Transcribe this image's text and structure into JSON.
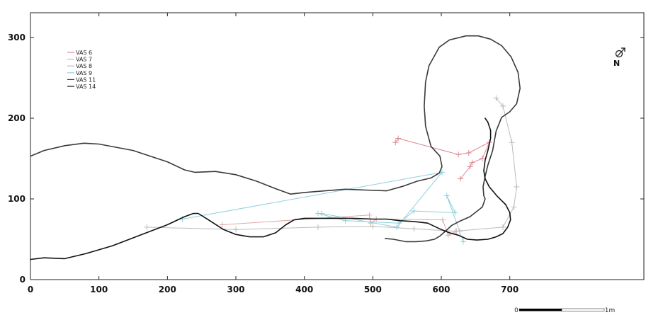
{
  "chart_data": {
    "type": "line",
    "title": "",
    "xlabel": "",
    "ylabel": "",
    "xlim": [
      0,
      750
    ],
    "ylim": [
      0,
      325
    ],
    "x_ticks": [
      0,
      100,
      200,
      300,
      400,
      500,
      600,
      700
    ],
    "y_ticks": [
      0,
      100,
      200,
      300
    ],
    "legend_position": "top-left",
    "series": [
      {
        "name": "VAS 6",
        "color": "#d98a94",
        "points": [
          [
            533,
            170
          ],
          [
            537,
            175
          ],
          [
            625,
            155
          ],
          [
            640,
            157
          ],
          [
            670,
            170
          ],
          [
            660,
            150
          ],
          [
            645,
            145
          ],
          [
            642,
            140
          ],
          [
            628,
            125
          ]
        ]
      },
      {
        "name": "VAS 7",
        "color": "#e3a9a9",
        "points": [
          [
            280,
            68
          ],
          [
            495,
            80
          ],
          [
            497,
            70
          ],
          [
            505,
            75
          ],
          [
            602,
            74
          ],
          [
            610,
            55
          ],
          [
            622,
            60
          ],
          [
            627,
            60
          ]
        ]
      },
      {
        "name": "VAS 8",
        "color": "#bbbbbb",
        "points": [
          [
            170,
            65
          ],
          [
            300,
            62
          ],
          [
            420,
            65
          ],
          [
            500,
            66
          ],
          [
            560,
            63
          ],
          [
            620,
            60
          ],
          [
            690,
            65
          ],
          [
            706,
            90
          ],
          [
            710,
            115
          ],
          [
            703,
            170
          ],
          [
            690,
            215
          ],
          [
            680,
            225
          ]
        ]
      },
      {
        "name": "VAS 9",
        "color": "#8fd0dd",
        "points": [
          [
            222,
            75
          ],
          [
            601,
            133
          ],
          [
            535,
            65
          ],
          [
            425,
            82
          ],
          [
            420,
            82
          ],
          [
            460,
            73
          ],
          [
            538,
            70
          ],
          [
            560,
            85
          ],
          [
            620,
            83
          ],
          [
            608,
            104
          ],
          [
            632,
            47
          ]
        ]
      },
      {
        "name": "VAS 11",
        "color": "#3a3a3a",
        "points": [
          [
            0,
            153
          ],
          [
            20,
            160
          ],
          [
            50,
            166
          ],
          [
            78,
            169
          ],
          [
            100,
            168
          ],
          [
            150,
            160
          ],
          [
            200,
            146
          ],
          [
            225,
            136
          ],
          [
            240,
            133
          ],
          [
            270,
            134
          ],
          [
            300,
            130
          ],
          [
            330,
            122
          ],
          [
            360,
            112
          ],
          [
            380,
            106
          ],
          [
            400,
            108
          ],
          [
            430,
            110
          ],
          [
            460,
            112
          ],
          [
            490,
            111
          ],
          [
            520,
            110
          ],
          [
            545,
            116
          ],
          [
            565,
            122
          ],
          [
            585,
            126
          ],
          [
            597,
            132
          ],
          [
            601,
            140
          ],
          [
            598,
            153
          ],
          [
            585,
            165
          ],
          [
            577,
            190
          ],
          [
            575,
            215
          ],
          [
            577,
            245
          ],
          [
            582,
            265
          ],
          [
            597,
            288
          ],
          [
            612,
            297
          ],
          [
            636,
            302
          ],
          [
            654,
            302
          ],
          [
            672,
            298
          ],
          [
            688,
            290
          ],
          [
            702,
            276
          ],
          [
            712,
            257
          ],
          [
            715,
            237
          ],
          [
            710,
            218
          ],
          [
            700,
            208
          ],
          [
            688,
            201
          ],
          [
            680,
            184
          ],
          [
            675,
            160
          ],
          [
            668,
            142
          ],
          [
            664,
            128
          ],
          [
            661,
            115
          ],
          [
            662,
            104
          ],
          [
            664,
            100
          ],
          [
            660,
            90
          ],
          [
            642,
            78
          ],
          [
            626,
            72
          ],
          [
            615,
            67
          ],
          [
            606,
            60
          ],
          [
            598,
            54
          ],
          [
            590,
            50
          ],
          [
            578,
            48
          ],
          [
            563,
            47
          ],
          [
            548,
            47
          ],
          [
            530,
            50
          ],
          [
            518,
            51
          ]
        ]
      },
      {
        "name": "VAS 14",
        "color": "#111111",
        "points": [
          [
            0,
            25
          ],
          [
            20,
            27
          ],
          [
            50,
            26
          ],
          [
            80,
            32
          ],
          [
            120,
            42
          ],
          [
            160,
            55
          ],
          [
            200,
            68
          ],
          [
            225,
            78
          ],
          [
            238,
            82
          ],
          [
            245,
            82
          ],
          [
            260,
            74
          ],
          [
            282,
            62
          ],
          [
            300,
            56
          ],
          [
            320,
            53
          ],
          [
            340,
            53
          ],
          [
            358,
            58
          ],
          [
            373,
            68
          ],
          [
            385,
            74
          ],
          [
            400,
            76
          ],
          [
            430,
            76
          ],
          [
            470,
            76
          ],
          [
            500,
            75
          ],
          [
            520,
            75
          ],
          [
            540,
            73
          ],
          [
            560,
            72
          ],
          [
            580,
            70
          ],
          [
            600,
            62
          ],
          [
            612,
            58
          ],
          [
            625,
            55
          ],
          [
            638,
            50
          ],
          [
            652,
            49
          ],
          [
            668,
            50
          ],
          [
            680,
            53
          ],
          [
            690,
            57
          ],
          [
            697,
            65
          ],
          [
            701,
            74
          ],
          [
            700,
            83
          ],
          [
            694,
            93
          ],
          [
            682,
            103
          ],
          [
            670,
            115
          ],
          [
            664,
            125
          ],
          [
            662,
            135
          ],
          [
            664,
            148
          ],
          [
            668,
            160
          ],
          [
            672,
            175
          ],
          [
            672,
            185
          ],
          [
            668,
            195
          ],
          [
            664,
            200
          ]
        ]
      }
    ],
    "scale_bar": {
      "left_label": "0",
      "right_label": "1m"
    },
    "north_label": "N"
  }
}
